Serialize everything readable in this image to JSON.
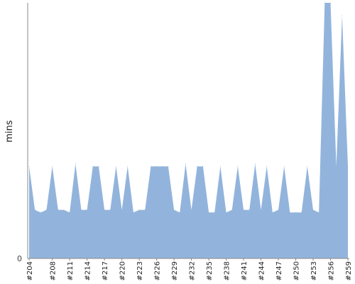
{
  "chart_data": {
    "type": "area",
    "ylabel": "mins",
    "y_tick_label": "0",
    "color": "#92b4dc",
    "axis_color": "#888888",
    "x": [
      "#204",
      "#205",
      "#206",
      "#207",
      "#208",
      "#209",
      "#210",
      "#211",
      "#212",
      "#213",
      "#214",
      "#215",
      "#216",
      "#217",
      "#218",
      "#219",
      "#220",
      "#221",
      "#222",
      "#223",
      "#224",
      "#225",
      "#226",
      "#227",
      "#228",
      "#229",
      "#230",
      "#231",
      "#232",
      "#233",
      "#234",
      "#235",
      "#236",
      "#237",
      "#238",
      "#239",
      "#240",
      "#241",
      "#242",
      "#243",
      "#244",
      "#245",
      "#246",
      "#247",
      "#248",
      "#249",
      "#250",
      "#251",
      "#252",
      "#253",
      "#254",
      "#255",
      "#256",
      "#257",
      "#258",
      "#259"
    ],
    "x_tick_labels": [
      "#204",
      "#208",
      "#211",
      "#214",
      "#217",
      "#220",
      "#223",
      "#226",
      "#229",
      "#232",
      "#235",
      "#238",
      "#241",
      "#244",
      "#247",
      "#250",
      "#253",
      "#256",
      "#259"
    ],
    "values": [
      36,
      19,
      18,
      19,
      36,
      19,
      19,
      18,
      37,
      19,
      19,
      36,
      36,
      19,
      19,
      36,
      19,
      36,
      18,
      19,
      19,
      36,
      36,
      36,
      36,
      19,
      18,
      37,
      19,
      36,
      36,
      18,
      18,
      36,
      18,
      19,
      36,
      19,
      19,
      37,
      19,
      36,
      18,
      19,
      36,
      18,
      18,
      18,
      36,
      19,
      18,
      100,
      100,
      36,
      95,
      36
    ],
    "ylim": [
      0,
      100
    ]
  }
}
